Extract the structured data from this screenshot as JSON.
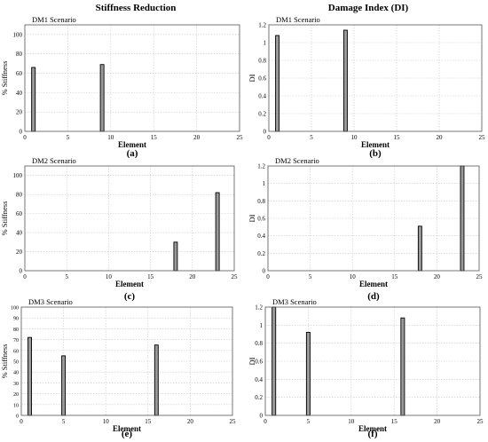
{
  "headers": {
    "left": "Stiffness Reduction",
    "right": "Damage Index (DI)"
  },
  "colors": {
    "bar_fill": "#9a9a9a",
    "bar_edge": "#000000",
    "grid": "#c8c8c8"
  },
  "chart_data": [
    {
      "id": "a",
      "type": "bar",
      "scenario": "DM1 Scenario",
      "caption": "(a)",
      "xlabel": "Element",
      "ylabel": "% Stiffness",
      "xlim": [
        0,
        25
      ],
      "xticks": [
        0,
        5,
        10,
        15,
        20,
        25
      ],
      "ylim": [
        0,
        110
      ],
      "yticks": [
        0,
        20,
        40,
        60,
        80,
        100
      ],
      "grid": true,
      "x": [
        1,
        9
      ],
      "values": [
        66,
        69
      ]
    },
    {
      "id": "b",
      "type": "bar",
      "scenario": "DM1 Scenario",
      "caption": "(b)",
      "xlabel": "Element",
      "ylabel": "DI",
      "xlim": [
        0,
        25
      ],
      "xticks": [
        0,
        5,
        10,
        15,
        20,
        25
      ],
      "ylim": [
        0,
        1.2
      ],
      "yticks": [
        0,
        0.2,
        0.4,
        0.6,
        0.8,
        1,
        1.2
      ],
      "grid": true,
      "x": [
        1,
        9
      ],
      "values": [
        1.08,
        1.14
      ]
    },
    {
      "id": "c",
      "type": "bar",
      "scenario": "DM2 Scenario",
      "caption": "(c)",
      "xlabel": "Element",
      "ylabel": "% Stiffness",
      "xlim": [
        0,
        25
      ],
      "xticks": [
        0,
        5,
        10,
        15,
        20,
        25
      ],
      "ylim": [
        0,
        110
      ],
      "yticks": [
        0,
        20,
        40,
        60,
        80,
        100
      ],
      "grid": true,
      "x": [
        18,
        23
      ],
      "values": [
        30,
        82
      ]
    },
    {
      "id": "d",
      "type": "bar",
      "scenario": "DM2 Scenario",
      "caption": "(d)",
      "xlabel": "Element",
      "ylabel": "DI",
      "xlim": [
        0,
        25
      ],
      "xticks": [
        0,
        5,
        10,
        15,
        20,
        25
      ],
      "ylim": [
        0,
        1.2
      ],
      "yticks": [
        0,
        0.2,
        0.4,
        0.6,
        0.8,
        1,
        1.2
      ],
      "grid": true,
      "x": [
        18,
        23
      ],
      "values": [
        0.51,
        1.2
      ]
    },
    {
      "id": "e",
      "type": "bar",
      "scenario": "DM3 Scenario",
      "caption": "(e)",
      "xlabel": "Element",
      "ylabel": "% Stiffness",
      "xlim": [
        0,
        25
      ],
      "xticks": [
        0,
        5,
        10,
        15,
        20,
        25
      ],
      "ylim": [
        0,
        100
      ],
      "yticks": [
        0,
        10,
        20,
        30,
        40,
        50,
        60,
        70,
        80,
        90,
        100
      ],
      "grid": true,
      "x": [
        1,
        5,
        16
      ],
      "values": [
        72,
        55,
        65
      ]
    },
    {
      "id": "f",
      "type": "bar",
      "scenario": "DM3 Scenario",
      "caption": "(f)",
      "xlabel": "Element",
      "ylabel": "DI",
      "xlim": [
        0,
        25
      ],
      "xticks": [
        0,
        5,
        10,
        15,
        20,
        25
      ],
      "ylim": [
        0,
        1.2
      ],
      "yticks": [
        0,
        0.2,
        0.4,
        0.6,
        0.8,
        1,
        1.2
      ],
      "grid": true,
      "x": [
        1,
        5,
        16
      ],
      "values": [
        1.2,
        0.92,
        1.08
      ]
    }
  ]
}
